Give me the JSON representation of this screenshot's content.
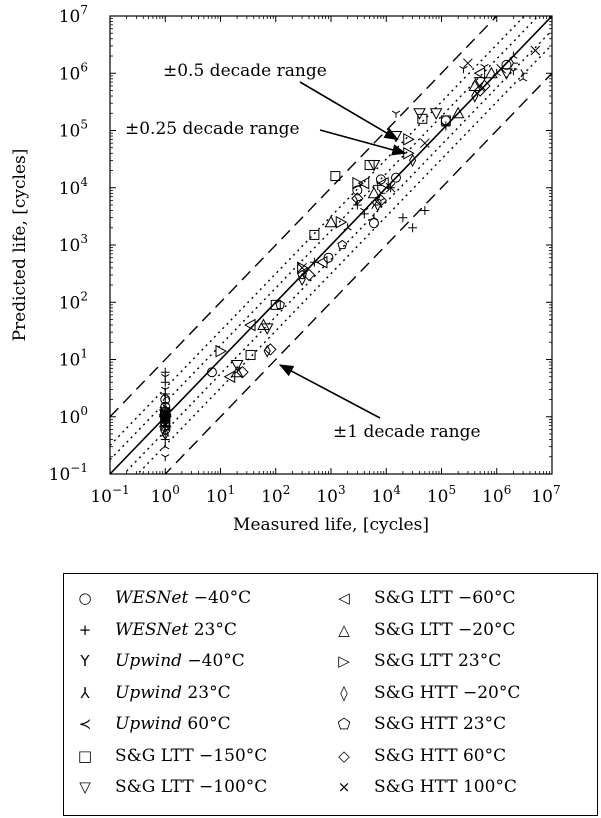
{
  "chart_data": {
    "type": "scatter",
    "xlabel": "Measured life, [cycles]",
    "ylabel": "Predicted life, [cycles]",
    "xscale": "log",
    "yscale": "log",
    "xlim": [
      0.1,
      10000000
    ],
    "ylim": [
      0.1,
      10000000
    ],
    "x_ticks": [
      "10−1",
      "100",
      "101",
      "102",
      "103",
      "104",
      "105",
      "106",
      "107"
    ],
    "y_ticks": [
      "10−1",
      "100",
      "101",
      "102",
      "103",
      "104",
      "105",
      "106",
      "107"
    ],
    "reference_lines": [
      {
        "name": "perfect",
        "offset_decades": 0,
        "style": "solid"
      },
      {
        "name": "±0.25 decade range",
        "offset_decades": 0.25,
        "style": "dotted"
      },
      {
        "name": "±0.5 decade range",
        "offset_decades": 0.5,
        "style": "dotted"
      },
      {
        "name": "±1 decade range",
        "offset_decades": 1,
        "style": "dashed"
      }
    ],
    "annotations": [
      {
        "text": "±0.5 decade range",
        "arrow_to": [
          16000,
          70000
        ]
      },
      {
        "text": "±0.25 decade range",
        "arrow_to": [
          22000,
          40000
        ]
      },
      {
        "text": "±1 decade range",
        "arrow_to": [
          120,
          8
        ]
      }
    ],
    "series": [
      {
        "name": "WESNet −40°C",
        "marker": "circle",
        "points": [
          [
            1,
            0.6
          ],
          [
            1,
            0.8
          ],
          [
            1,
            1.1
          ],
          [
            1,
            1.5
          ],
          [
            1,
            2
          ],
          [
            7,
            6
          ],
          [
            900,
            600
          ],
          [
            3000,
            9000
          ],
          [
            6000,
            2400
          ],
          [
            8000,
            14000
          ],
          [
            15000,
            15000
          ],
          [
            120000,
            150000
          ],
          [
            1500000,
            1400000
          ]
        ]
      },
      {
        "name": "WESNet 23°C",
        "marker": "plus",
        "points": [
          [
            1,
            0.4
          ],
          [
            1,
            0.7
          ],
          [
            1,
            1
          ],
          [
            1,
            1.3
          ],
          [
            1,
            2.5
          ],
          [
            1,
            4
          ],
          [
            1,
            6
          ],
          [
            500,
            500
          ],
          [
            3000,
            5000
          ],
          [
            4000,
            3500
          ],
          [
            7000,
            11000
          ],
          [
            12000,
            10000
          ],
          [
            20000,
            3000
          ],
          [
            30000,
            2000
          ],
          [
            50000,
            4000
          ],
          [
            120000,
            120000
          ]
        ]
      },
      {
        "name": "Upwind −40°C",
        "marker": "tri_down",
        "points": [
          [
            1,
            0.3
          ],
          [
            1,
            0.5
          ],
          [
            1,
            0.9
          ],
          [
            1,
            1.8
          ],
          [
            2000,
            2000
          ],
          [
            6000,
            3000
          ],
          [
            1000000,
            1000000
          ],
          [
            2000000,
            2000000
          ],
          [
            3000000,
            800000
          ]
        ]
      },
      {
        "name": "Upwind 23°C",
        "marker": "tri_up",
        "points": [
          [
            1,
            0.2
          ],
          [
            1,
            1.2
          ],
          [
            1,
            3
          ],
          [
            1,
            5
          ],
          [
            4000,
            4000
          ],
          [
            8000,
            6000
          ],
          [
            15000,
            200000
          ],
          [
            250000,
            1200000
          ],
          [
            600000,
            1300000
          ],
          [
            2000000,
            1100000
          ]
        ]
      },
      {
        "name": "Upwind 60°C",
        "marker": "tri_left",
        "points": [
          [
            1,
            0.6
          ],
          [
            1,
            1.4
          ],
          [
            1,
            2.2
          ],
          [
            3000,
            6000
          ],
          [
            6000,
            5000
          ],
          [
            8000,
            8000
          ],
          [
            2000000,
            1500000
          ],
          [
            3000000,
            1000000
          ]
        ]
      },
      {
        "name": "S&G LTT −150°C",
        "marker": "square",
        "points": [
          [
            1,
            0.7
          ],
          [
            1,
            1
          ],
          [
            1,
            1.2
          ],
          [
            35,
            12
          ],
          [
            100,
            90
          ],
          [
            500,
            1500
          ],
          [
            1200,
            16000
          ],
          [
            5000,
            25000
          ],
          [
            45000,
            160000
          ],
          [
            120000,
            150000
          ]
        ]
      },
      {
        "name": "S&G LTT −100°C",
        "marker": "triangle_down",
        "points": [
          [
            1,
            0.9
          ],
          [
            1,
            1.1
          ],
          [
            20,
            8
          ],
          [
            70,
            35
          ],
          [
            6000,
            25000
          ],
          [
            15000,
            80000
          ],
          [
            40000,
            200000
          ],
          [
            80000,
            200000
          ],
          [
            500000,
            700000
          ],
          [
            1500000,
            1000000
          ]
        ]
      },
      {
        "name": "S&G LTT −60°C",
        "marker": "triangle_left",
        "points": [
          [
            1,
            1
          ],
          [
            15,
            5
          ],
          [
            35,
            40
          ],
          [
            700,
            500
          ],
          [
            4000,
            12000
          ],
          [
            9000,
            12000
          ],
          [
            500000,
            1000000
          ]
        ]
      },
      {
        "name": "S&G LTT −20°C",
        "marker": "triangle_up",
        "points": [
          [
            1,
            0.8
          ],
          [
            1,
            1.3
          ],
          [
            20,
            6
          ],
          [
            60,
            40
          ],
          [
            1000,
            2500
          ],
          [
            6000,
            8000
          ],
          [
            200000,
            200000
          ],
          [
            400000,
            600000
          ],
          [
            800000,
            1000000
          ]
        ]
      },
      {
        "name": "S&G LTT 23°C",
        "marker": "triangle_right",
        "points": [
          [
            1,
            1
          ],
          [
            10,
            14
          ],
          [
            300,
            400
          ],
          [
            1500,
            2500
          ],
          [
            3000,
            12000
          ],
          [
            25000,
            40000
          ],
          [
            25000,
            70000
          ]
        ]
      },
      {
        "name": "S&G HTT −20°C",
        "marker": "thin_diamond",
        "points": [
          [
            1,
            0.5
          ],
          [
            70,
            14
          ],
          [
            300,
            250
          ],
          [
            7000,
            5000
          ],
          [
            30000,
            30000
          ],
          [
            400000,
            400000
          ]
        ]
      },
      {
        "name": "S&G HTT 23°C",
        "marker": "pentagon",
        "points": [
          [
            1,
            0.9
          ],
          [
            1,
            1.1
          ],
          [
            120,
            90
          ],
          [
            300,
            300
          ],
          [
            1600,
            1000
          ]
        ]
      },
      {
        "name": "S&G HTT 60°C",
        "marker": "diamond",
        "points": [
          [
            1,
            1
          ],
          [
            25,
            6
          ],
          [
            80,
            15
          ],
          [
            400,
            300
          ],
          [
            3000,
            6500
          ],
          [
            8000,
            6000
          ],
          [
            500000,
            500000
          ],
          [
            600000,
            600000
          ]
        ]
      },
      {
        "name": "S&G HTT 100°C",
        "marker": "x",
        "points": [
          [
            1,
            0.7
          ],
          [
            1,
            1.2
          ],
          [
            300,
            400
          ],
          [
            12000,
            10000
          ],
          [
            50000,
            60000
          ],
          [
            300000,
            1500000
          ],
          [
            1200000,
            1200000
          ],
          [
            5000000,
            2500000
          ]
        ]
      }
    ]
  },
  "legend": {
    "items": [
      {
        "symbol": "○",
        "pre": "",
        "italic": "WESNet",
        "post": " −40°C"
      },
      {
        "symbol": "+",
        "pre": "",
        "italic": "WESNet",
        "post": " 23°C"
      },
      {
        "symbol": "Y",
        "pre": "",
        "italic": "Upwind",
        "post": " −40°C"
      },
      {
        "symbol": "⅄",
        "pre": "",
        "italic": "Upwind",
        "post": " 23°C"
      },
      {
        "symbol": "≺",
        "pre": "",
        "italic": "Upwind",
        "post": " 60°C"
      },
      {
        "symbol": "□",
        "pre": "S&G LTT −150°C",
        "italic": "",
        "post": ""
      },
      {
        "symbol": "▽",
        "pre": "S&G LTT −100°C",
        "italic": "",
        "post": ""
      },
      {
        "symbol": "◁",
        "pre": "S&G LTT −60°C",
        "italic": "",
        "post": ""
      },
      {
        "symbol": "△",
        "pre": "S&G LTT −20°C",
        "italic": "",
        "post": ""
      },
      {
        "symbol": "▷",
        "pre": "S&G LTT 23°C",
        "italic": "",
        "post": ""
      },
      {
        "symbol": "◊",
        "pre": "S&G HTT −20°C",
        "italic": "",
        "post": ""
      },
      {
        "symbol": "⬠",
        "pre": "S&G HTT 23°C",
        "italic": "",
        "post": ""
      },
      {
        "symbol": "◇",
        "pre": "S&G HTT 60°C",
        "italic": "",
        "post": ""
      },
      {
        "symbol": "×",
        "pre": "S&G HTT 100°C",
        "italic": "",
        "post": ""
      }
    ]
  }
}
